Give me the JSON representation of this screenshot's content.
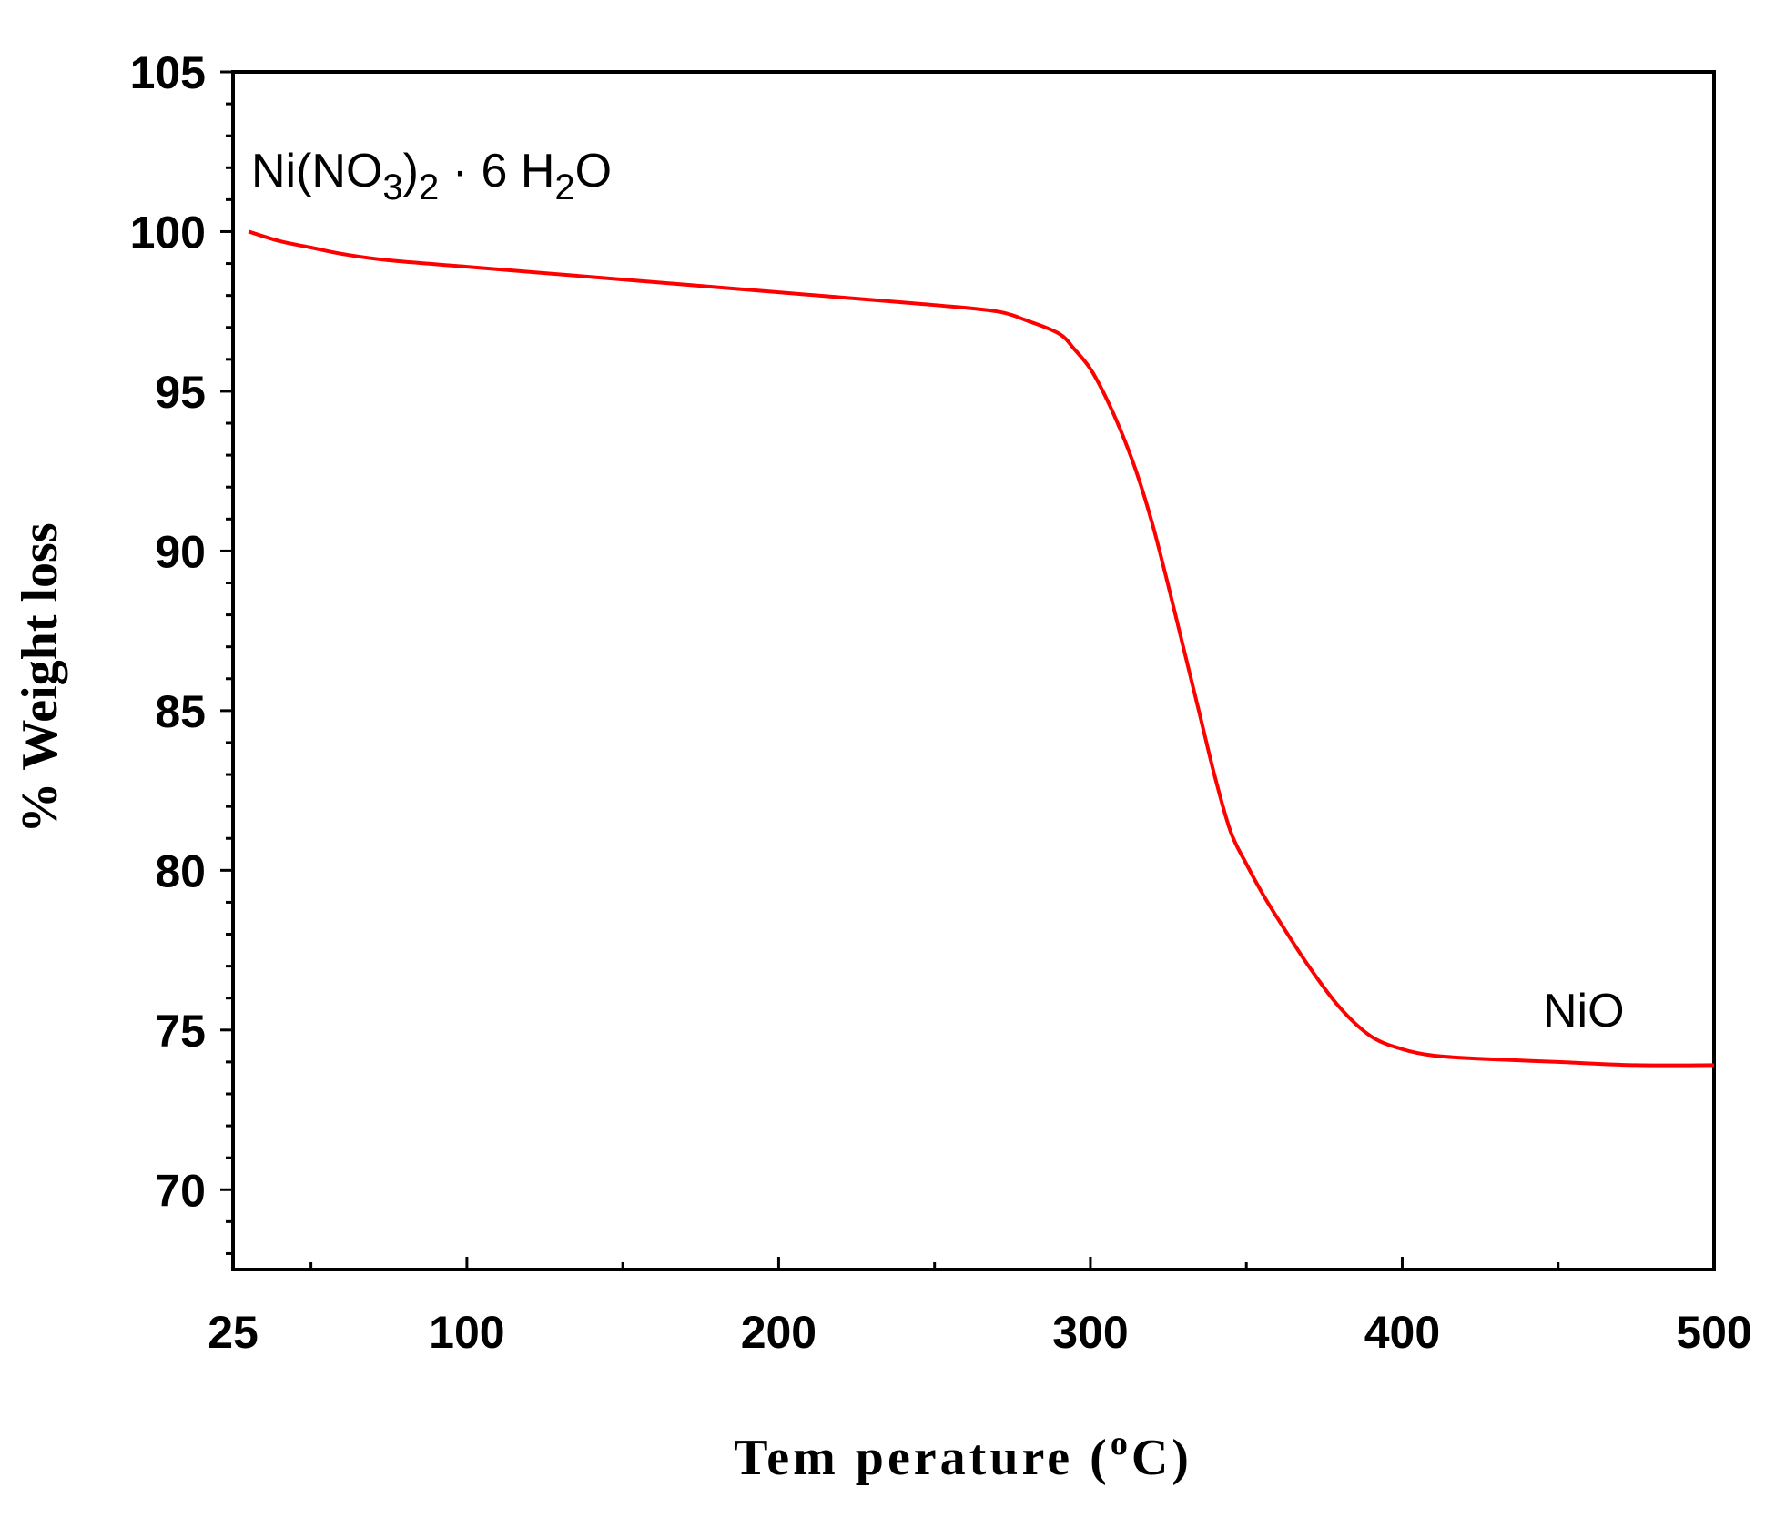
{
  "chart_data": {
    "type": "line",
    "title": "",
    "xlabel": "Tem perature (",
    "xlabel_sup": "o",
    "xlabel_unit": "C)",
    "ylabel": "% Weight loss",
    "xlim": [
      25,
      500
    ],
    "ylim": [
      67.5,
      105
    ],
    "x_ticks": [
      25,
      100,
      200,
      300,
      400,
      500
    ],
    "x_tick_labels": [
      "25",
      "100",
      "200",
      "300",
      "400",
      "500"
    ],
    "x_minor_ticks": [
      50,
      150,
      250,
      350,
      450
    ],
    "y_ticks": [
      70,
      75,
      80,
      85,
      90,
      95,
      100,
      105
    ],
    "y_tick_labels": [
      "70",
      "75",
      "80",
      "85",
      "90",
      "95",
      "100",
      "105"
    ],
    "grid": false,
    "legend": "none",
    "series": [
      {
        "color": "#ff0000",
        "x": [
          30,
          40,
          50,
          60,
          75,
          100,
          125,
          150,
          175,
          200,
          225,
          250,
          270,
          280,
          290,
          295,
          300,
          305,
          310,
          315,
          320,
          325,
          330,
          335,
          340,
          345,
          350,
          355,
          360,
          370,
          380,
          390,
          400,
          410,
          425,
          450,
          475,
          500
        ],
        "y": [
          100.0,
          99.7,
          99.5,
          99.3,
          99.1,
          98.9,
          98.7,
          98.5,
          98.3,
          98.1,
          97.9,
          97.7,
          97.5,
          97.2,
          96.8,
          96.3,
          95.7,
          94.8,
          93.7,
          92.4,
          90.8,
          88.9,
          86.9,
          84.9,
          82.9,
          81.2,
          80.2,
          79.3,
          78.5,
          77.0,
          75.7,
          74.8,
          74.4,
          74.2,
          74.1,
          74.0,
          73.9,
          73.9
        ]
      }
    ],
    "annotations": [
      {
        "text": "Ni(NO",
        "sub1": "3",
        "mid": ")",
        "sub2": "2",
        "tail": " · 6 H",
        "sub3": "2",
        "end": "O"
      },
      {
        "text": "NiO"
      }
    ]
  }
}
